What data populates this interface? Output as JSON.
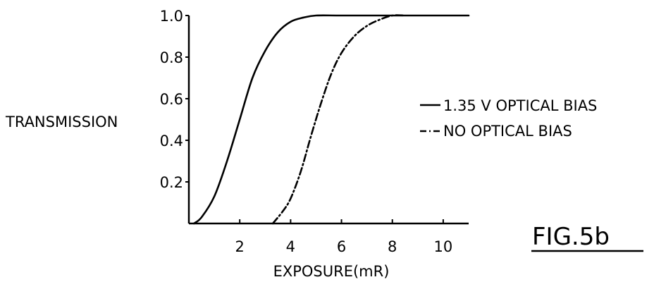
{
  "figure_label": "FIG.5b",
  "chart_data": {
    "type": "line",
    "title": "",
    "xlabel": "EXPOSURE(mR)",
    "ylabel": "TRANSMISSION",
    "xlim": [
      0,
      11
    ],
    "ylim": [
      0,
      1.0
    ],
    "x_ticks": [
      2,
      4,
      6,
      8,
      10
    ],
    "x_tick_labels": [
      "2",
      "4",
      "6",
      "8",
      "10"
    ],
    "y_ticks": [
      0.2,
      0.4,
      0.6,
      0.8,
      1.0
    ],
    "y_tick_labels": [
      "0.2",
      "0.4",
      "0.6",
      "0.8",
      "1.0"
    ],
    "grid": false,
    "legend_position": "right",
    "series": [
      {
        "name": "1.35 V OPTICAL BIAS",
        "line_style": "solid",
        "color": "#000000",
        "x": [
          0.2,
          0.5,
          1.0,
          1.5,
          2.0,
          2.5,
          3.0,
          3.5,
          4.0,
          4.5,
          5.0,
          6.0,
          8.0,
          11.0
        ],
        "y": [
          0.0,
          0.03,
          0.13,
          0.3,
          0.5,
          0.7,
          0.83,
          0.92,
          0.97,
          0.99,
          1.0,
          1.0,
          1.0,
          1.0
        ]
      },
      {
        "name": "NO OPTICAL BIAS",
        "line_style": "dashdot",
        "color": "#000000",
        "x": [
          3.3,
          3.7,
          4.0,
          4.4,
          4.8,
          5.2,
          5.6,
          6.0,
          6.5,
          7.0,
          7.5,
          8.0,
          8.5
        ],
        "y": [
          0.0,
          0.06,
          0.12,
          0.25,
          0.42,
          0.58,
          0.72,
          0.82,
          0.9,
          0.95,
          0.98,
          1.0,
          1.0
        ]
      }
    ]
  }
}
